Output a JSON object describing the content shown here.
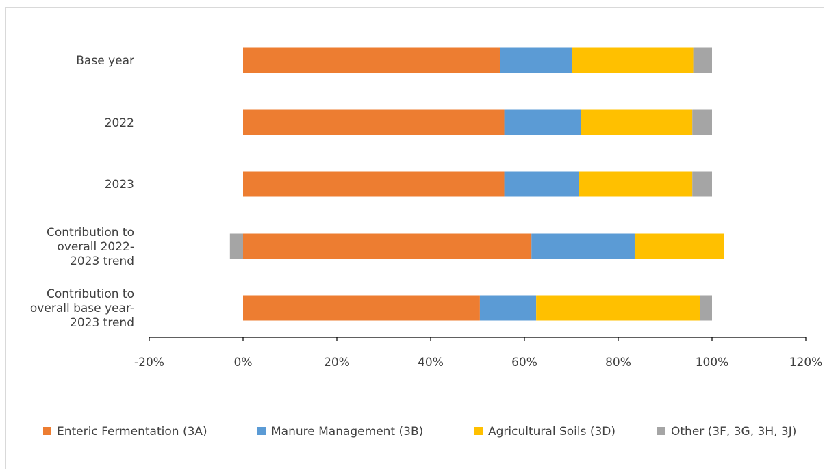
{
  "chart_data": {
    "type": "bar",
    "orientation": "horizontal",
    "stacked": true,
    "categories": [
      [
        "Base year"
      ],
      [
        "2022"
      ],
      [
        "2023"
      ],
      [
        "Contribution to",
        "overall 2022-",
        "2023 trend"
      ],
      [
        "Contribution to",
        "overall base year-",
        "2023 trend"
      ]
    ],
    "series": [
      {
        "name": "Enteric Fermentation (3A)",
        "color": "#ED7D31",
        "values": [
          54.8,
          55.7,
          55.7,
          61.5,
          50.5
        ]
      },
      {
        "name": "Manure Management (3B)",
        "color": "#5B9BD5",
        "values": [
          15.3,
          16.3,
          15.9,
          22.0,
          12.0
        ]
      },
      {
        "name": "Agricultural Soils (3D)",
        "color": "#FFC000",
        "values": [
          25.9,
          23.8,
          24.2,
          19.1,
          34.9
        ]
      },
      {
        "name": "Other (3F, 3G, 3H, 3J)",
        "color": "#A5A5A5",
        "values": [
          4.0,
          4.2,
          4.2,
          -2.8,
          2.6
        ]
      }
    ],
    "xlim": [
      -20,
      120
    ],
    "xticks": [
      -20,
      0,
      20,
      40,
      60,
      80,
      100,
      120
    ],
    "xtick_labels": [
      "-20%",
      "0%",
      "20%",
      "40%",
      "60%",
      "80%",
      "100%",
      "120%"
    ],
    "title": "",
    "xlabel": "",
    "ylabel": "",
    "grid": false,
    "legend_position": "bottom"
  }
}
